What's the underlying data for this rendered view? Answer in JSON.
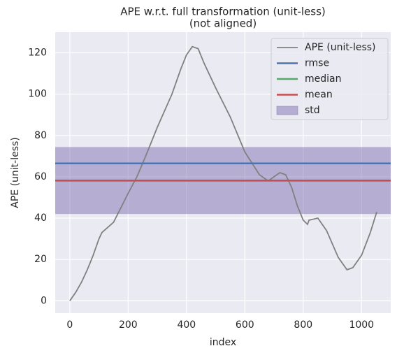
{
  "chart_data": {
    "type": "line",
    "title": [
      "APE w.r.t. full transformation (unit-less)",
      "(not aligned)"
    ],
    "xlabel": "index",
    "ylabel": "APE (unit-less)",
    "xlim": [
      -50,
      1100
    ],
    "ylim": [
      -6,
      130
    ],
    "xticks": [
      0,
      200,
      400,
      600,
      800,
      1000
    ],
    "yticks": [
      0,
      20,
      40,
      60,
      80,
      100,
      120
    ],
    "grid": true,
    "legend": "upper right",
    "series": [
      {
        "name": "APE (unit-less)",
        "color": "#808080",
        "x": [
          0,
          20,
          40,
          60,
          80,
          95,
          100,
          110,
          150,
          200,
          230,
          260,
          300,
          350,
          380,
          400,
          420,
          440,
          460,
          500,
          550,
          600,
          650,
          680,
          700,
          720,
          740,
          760,
          780,
          800,
          815,
          820,
          850,
          880,
          920,
          950,
          970,
          1000,
          1030,
          1052
        ],
        "values": [
          0,
          4,
          9,
          15,
          22,
          28,
          30,
          33,
          38,
          52,
          60,
          70,
          84,
          100,
          112,
          119,
          123,
          122,
          115,
          103,
          89,
          72,
          61,
          58,
          60,
          62,
          61,
          55,
          46,
          39,
          37,
          39,
          40,
          34,
          21,
          15,
          16,
          22,
          33,
          43
        ]
      }
    ],
    "stats": [
      {
        "name": "rmse",
        "color": "#4c72b0",
        "value": 66.5
      },
      {
        "name": "median",
        "color": "#55a868",
        "value": 58.1
      },
      {
        "name": "mean",
        "color": "#c44e52",
        "value": 58.2
      }
    ],
    "std": {
      "name": "std",
      "color": "#8172b2",
      "value": 16.2
    }
  }
}
